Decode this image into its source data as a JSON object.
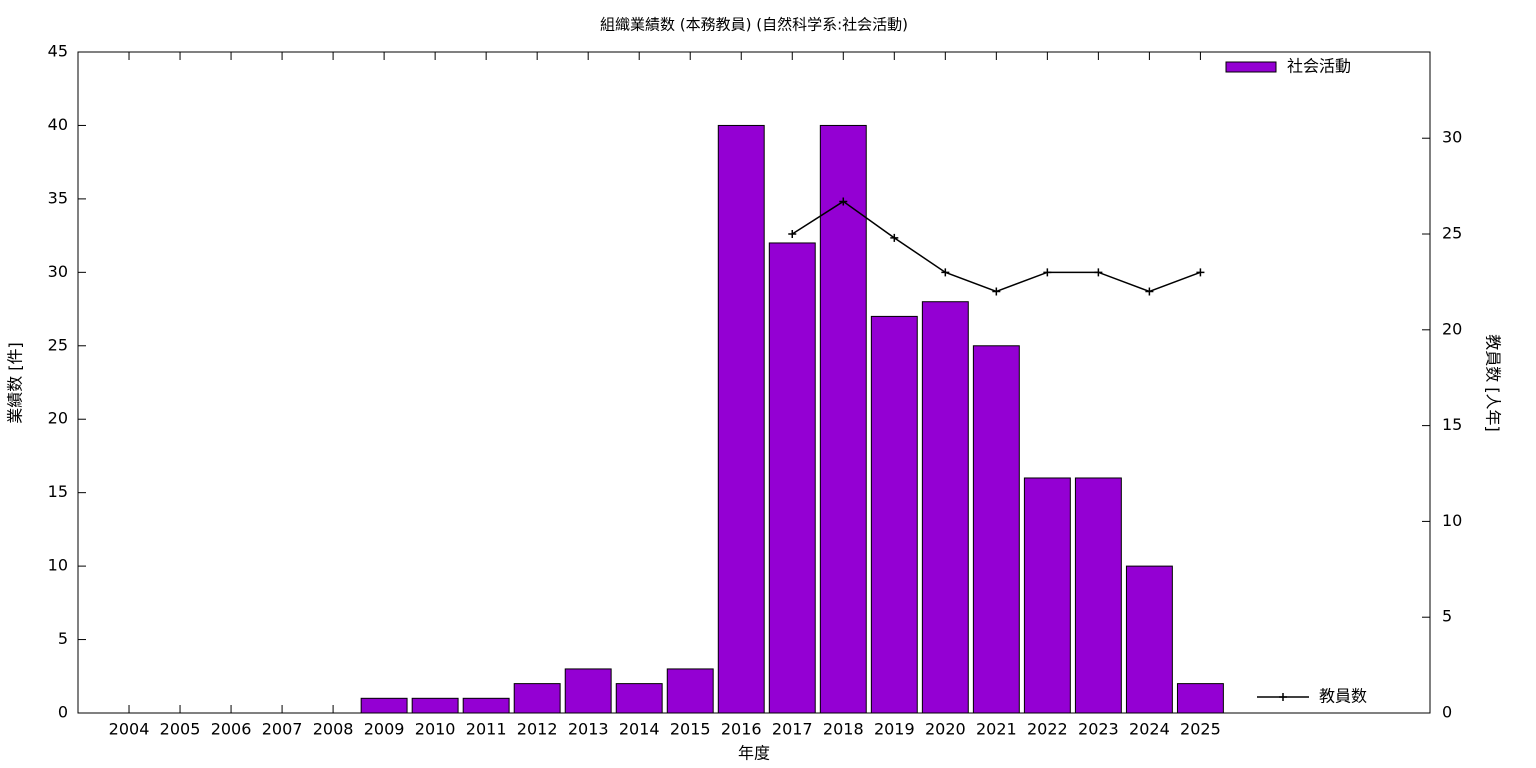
{
  "chart_data": {
    "type": "bar",
    "title": "組織業績数 (本務教員) (自然科学系:社会活動)",
    "x_label": "年度",
    "y_label": "業績数 [件]",
    "y2_label": "教員数 [人年]",
    "categories": [
      "2004",
      "2005",
      "2006",
      "2007",
      "2008",
      "2009",
      "2010",
      "2011",
      "2012",
      "2013",
      "2014",
      "2015",
      "2016",
      "2017",
      "2018",
      "2019",
      "2020",
      "2021",
      "2022",
      "2023",
      "2024",
      "2025"
    ],
    "series": [
      {
        "name": "社会活動",
        "type": "bar",
        "color": "#9400d3",
        "legend": "top-right",
        "values": [
          0,
          0,
          0,
          0,
          0,
          1,
          1,
          1,
          2,
          3,
          2,
          3,
          40,
          32,
          40,
          27,
          28,
          25,
          16,
          16,
          10,
          2
        ]
      },
      {
        "name": "教員数",
        "type": "line",
        "axis": "y2",
        "color": "#000000",
        "legend": "bottom-right",
        "values": [
          null,
          null,
          null,
          null,
          null,
          null,
          null,
          null,
          null,
          null,
          null,
          null,
          null,
          25,
          26.7,
          24.8,
          23,
          22,
          23,
          23,
          22,
          23
        ]
      }
    ],
    "ylim": [
      0,
      45
    ],
    "yticks": [
      0,
      5,
      10,
      15,
      20,
      25,
      30,
      35,
      40,
      45
    ],
    "y2lim": [
      0,
      34.5
    ],
    "y2ticks": [
      0,
      5,
      10,
      15,
      20,
      25,
      30
    ]
  }
}
